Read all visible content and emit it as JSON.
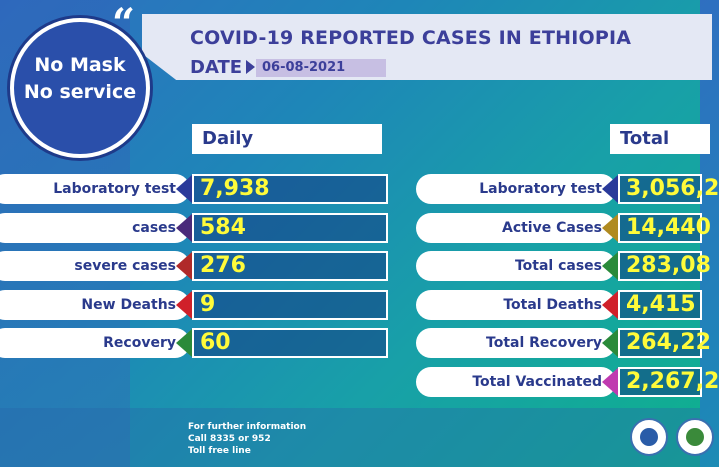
{
  "header": {
    "title": "COVID-19 REPORTED CASES IN ETHIOPIA",
    "date_label": "DATE",
    "date": "06-08-2021"
  },
  "logo": {
    "line1": "No Mask",
    "line2": "No service"
  },
  "daily": {
    "heading": "Daily",
    "rows": [
      {
        "label": "Laboratory test",
        "value": "7,938",
        "color": "#2a3a9a"
      },
      {
        "label": "cases",
        "value": "584",
        "color": "#4a2a7a"
      },
      {
        "label": "severe cases",
        "value": "276",
        "color": "#b02a2a"
      },
      {
        "label": "New Deaths",
        "value": "9",
        "color": "#d0202a"
      },
      {
        "label": "Recovery",
        "value": "60",
        "color": "#2a8a3a"
      }
    ]
  },
  "total": {
    "heading": "Total",
    "rows": [
      {
        "label": "Laboratory test",
        "value": "3,056,2",
        "color": "#2a3a9a"
      },
      {
        "label": "Active Cases",
        "value": "14,440",
        "color": "#b08a20"
      },
      {
        "label": "Total cases",
        "value": "283,08",
        "color": "#2a8a3a"
      },
      {
        "label": "Total Deaths",
        "value": "4,415",
        "color": "#d0202a"
      },
      {
        "label": "Total Recovery",
        "value": "264,22",
        "color": "#2a8a3a"
      },
      {
        "label": "Total Vaccinated",
        "value": "2,267,2",
        "color": "#c03ab0"
      }
    ]
  },
  "footer": {
    "line1": "For further information",
    "line2": "Call 8335 or 952",
    "line3": "Toll free line"
  }
}
